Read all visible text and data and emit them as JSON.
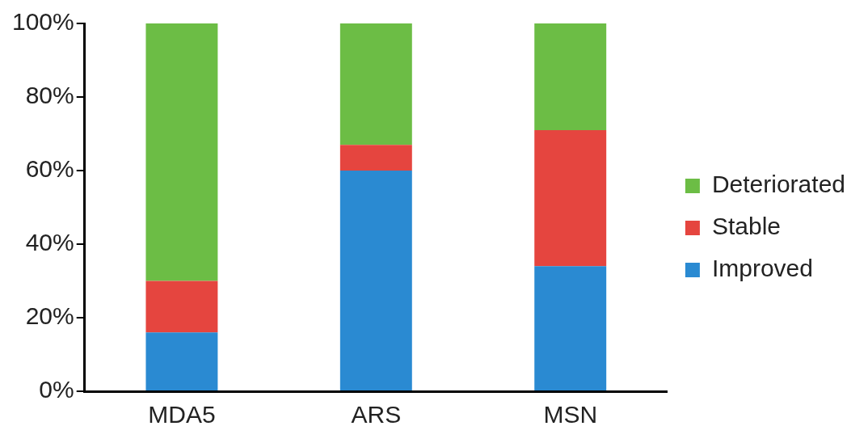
{
  "chart_data": {
    "type": "bar",
    "stacked": true,
    "categories": [
      "MDA5",
      "ARS",
      "MSN"
    ],
    "series": [
      {
        "name": "Improved",
        "color": "#2a8ad2",
        "values": [
          16,
          60,
          34
        ]
      },
      {
        "name": "Stable",
        "color": "#e5453f",
        "values": [
          14,
          7,
          37
        ]
      },
      {
        "name": "Deteriorated",
        "color": "#6cbd45",
        "values": [
          70,
          33,
          29
        ]
      }
    ],
    "ylim": [
      0,
      100
    ],
    "yticks": [
      {
        "value": 0,
        "label": "0%"
      },
      {
        "value": 20,
        "label": "20%"
      },
      {
        "value": 40,
        "label": "40%"
      },
      {
        "value": 60,
        "label": "60%"
      },
      {
        "value": 80,
        "label": "80%"
      },
      {
        "value": 100,
        "label": "100%"
      }
    ],
    "grid": false,
    "legend": "right"
  }
}
